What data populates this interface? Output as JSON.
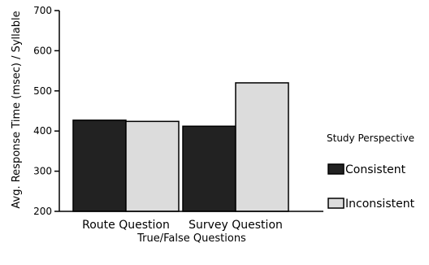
{
  "chart_data": {
    "type": "bar",
    "categories": [
      "Route Question",
      "Survey Question"
    ],
    "series": [
      {
        "name": "Consistent",
        "values": [
          427,
          412
        ],
        "color": "#222222"
      },
      {
        "name": "Inconsistent",
        "values": [
          424,
          520
        ],
        "color": "#dcdcdc"
      }
    ],
    "xlabel": "True/False Questions",
    "ylabel": "Avg. Response Time (msec) / Syllable",
    "ylim": [
      200,
      700
    ],
    "yticks": [
      200,
      300,
      400,
      500,
      600,
      700
    ],
    "legend_title": "Study Perspective",
    "legend_position": "right",
    "grid": false
  }
}
